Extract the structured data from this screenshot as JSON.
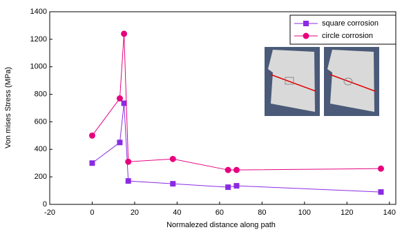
{
  "chart_data": {
    "type": "line",
    "x_label": "Normalezed distance along path",
    "y_label": "Von mises Stress (MPa)",
    "xlim": [
      -20,
      143
    ],
    "xticks": [
      -20,
      0,
      20,
      40,
      60,
      80,
      100,
      120,
      140
    ],
    "ylim": [
      0,
      1400
    ],
    "yticks": [
      0,
      200,
      400,
      600,
      800,
      1000,
      1200,
      1400
    ],
    "grid": false,
    "legend": "upper right",
    "series": [
      {
        "name": "square corrosion",
        "color": "#8a2be2",
        "marker": "square",
        "x": [
          0,
          13,
          15,
          17,
          38,
          64,
          68,
          136
        ],
        "values": [
          300,
          450,
          735,
          170,
          150,
          125,
          135,
          90
        ]
      },
      {
        "name": "circle corrosion",
        "color": "#e6007e",
        "marker": "circle",
        "x": [
          0,
          13,
          15,
          17,
          38,
          64,
          68,
          136
        ],
        "values": [
          500,
          770,
          1240,
          310,
          330,
          250,
          250,
          260
        ]
      }
    ]
  }
}
